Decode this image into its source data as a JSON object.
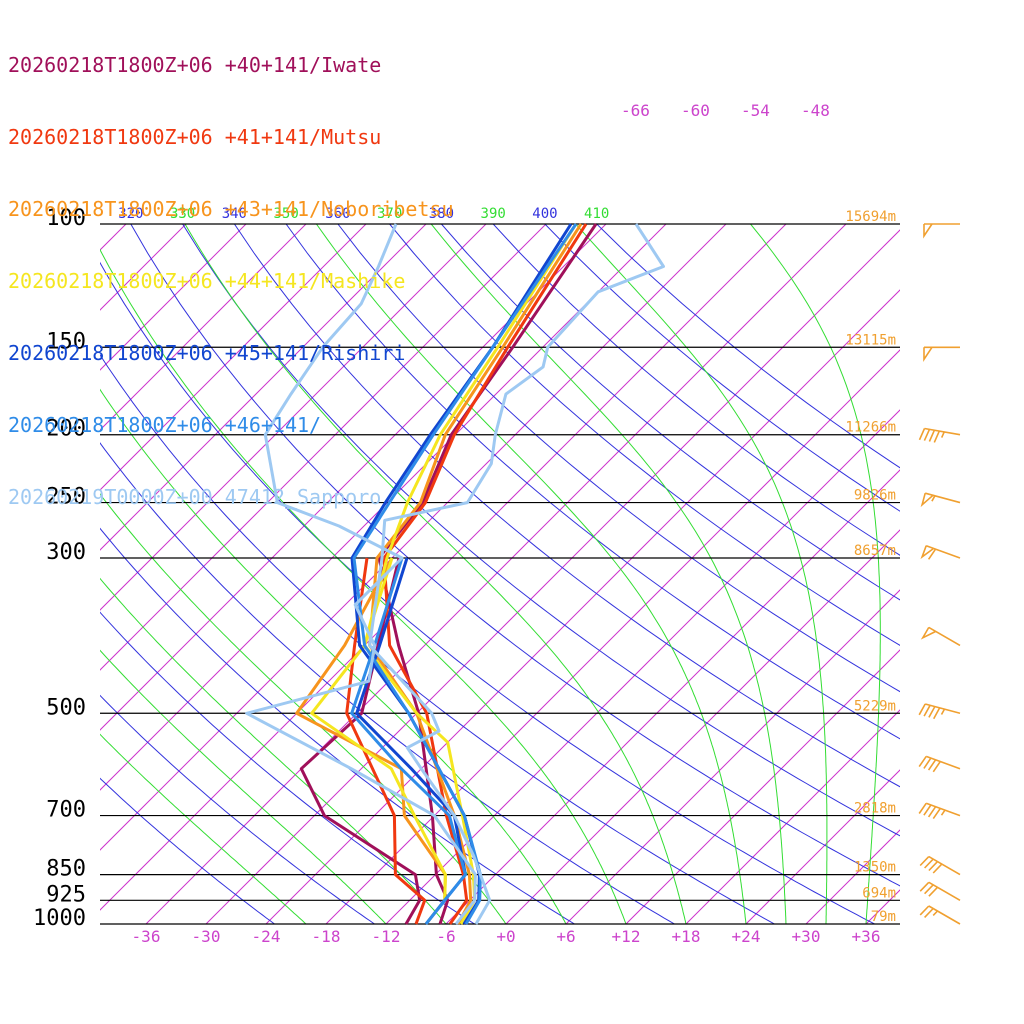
{
  "chart_data": {
    "type": "line",
    "title": "",
    "xlabel": "",
    "ylabel": "",
    "x_scale": "skew-T temperature (°C)",
    "y_scale": "log pressure (hPa)",
    "xlim": [
      -40,
      40
    ],
    "ylim": [
      1000,
      100
    ],
    "grid": true,
    "legend_position": "top-left",
    "x_ticks": [
      "-36",
      "-30",
      "-24",
      "-18",
      "-12",
      "-6",
      "+0",
      "+6",
      "+12",
      "+18",
      "+24",
      "+30",
      "+36"
    ],
    "pressure_levels": [
      {
        "p": 100,
        "label": "100",
        "height": "15694m"
      },
      {
        "p": 150,
        "label": "150",
        "height": "13115m"
      },
      {
        "p": 200,
        "label": "200",
        "height": "11266m"
      },
      {
        "p": 250,
        "label": "250",
        "height": "9826m"
      },
      {
        "p": 300,
        "label": "300",
        "height": "8657m"
      },
      {
        "p": 500,
        "label": "500",
        "height": "5229m"
      },
      {
        "p": 700,
        "label": "700",
        "height": "2818m"
      },
      {
        "p": 850,
        "label": "850",
        "height": "1350m"
      },
      {
        "p": 925,
        "label": "925",
        "height": "694m"
      },
      {
        "p": 1000,
        "label": "1000",
        "height": "79m"
      }
    ],
    "isotherm_labels": [
      "-66",
      "-60",
      "-54",
      "-48"
    ],
    "theta_labels": [
      "320",
      "330",
      "340",
      "350",
      "360",
      "370",
      "380",
      "390",
      "400",
      "410"
    ],
    "colors": {
      "isotherm": "#cc33cc",
      "dry_adiabat": "#3333dd",
      "moist_adiabat": "#33dd33",
      "height_label": "#f0a030",
      "wind_barb": "#f0a030",
      "axis_tick": "#cc44cc"
    },
    "series": [
      {
        "name": "20260218T1800Z+06 +40+141/Iwate",
        "color": "#a0105a",
        "temperature": [
          {
            "p": 1000,
            "t": -6.6
          },
          {
            "p": 925,
            "t": -8.2
          },
          {
            "p": 850,
            "t": -11.9
          },
          {
            "p": 700,
            "t": -18.2
          },
          {
            "p": 500,
            "t": -29.8
          },
          {
            "p": 400,
            "t": -38.6
          },
          {
            "p": 300,
            "t": -49.3
          },
          {
            "p": 250,
            "t": -50.5
          },
          {
            "p": 200,
            "t": -54.4
          },
          {
            "p": 150,
            "t": -57.0
          },
          {
            "p": 100,
            "t": -61.0
          }
        ],
        "dewpoint": [
          {
            "p": 1000,
            "t": -10.0
          },
          {
            "p": 925,
            "t": -11.0
          },
          {
            "p": 850,
            "t": -14.0
          },
          {
            "p": 700,
            "t": -29.0
          },
          {
            "p": 600,
            "t": -36.0
          },
          {
            "p": 500,
            "t": -35.5
          },
          {
            "p": 300,
            "t": -47.3
          }
        ]
      },
      {
        "name": "20260218T1800Z+06 +41+141/Mutsu",
        "color": "#f03810",
        "temperature": [
          {
            "p": 1000,
            "t": -5.6
          },
          {
            "p": 925,
            "t": -6.3
          },
          {
            "p": 850,
            "t": -9.2
          },
          {
            "p": 700,
            "t": -16.8
          },
          {
            "p": 500,
            "t": -29.0
          },
          {
            "p": 400,
            "t": -39.5
          },
          {
            "p": 300,
            "t": -48.8
          },
          {
            "p": 250,
            "t": -50.2
          },
          {
            "p": 200,
            "t": -54.1
          },
          {
            "p": 150,
            "t": -57.5
          },
          {
            "p": 100,
            "t": -62.0
          }
        ],
        "dewpoint": [
          {
            "p": 1000,
            "t": -9.0
          },
          {
            "p": 925,
            "t": -10.5
          },
          {
            "p": 850,
            "t": -16.0
          },
          {
            "p": 700,
            "t": -22.0
          },
          {
            "p": 500,
            "t": -37.0
          },
          {
            "p": 400,
            "t": -43.0
          },
          {
            "p": 300,
            "t": -50.5
          }
        ]
      },
      {
        "name": "20260218T1800Z+06 +43+141/Noboribetsu",
        "color": "#f7941d",
        "temperature": [
          {
            "p": 1000,
            "t": -4.8
          },
          {
            "p": 925,
            "t": -5.9
          },
          {
            "p": 850,
            "t": -8.6
          },
          {
            "p": 700,
            "t": -16.0
          },
          {
            "p": 500,
            "t": -30.0
          },
          {
            "p": 400,
            "t": -41.5
          },
          {
            "p": 300,
            "t": -49.5
          },
          {
            "p": 250,
            "t": -50.7
          },
          {
            "p": 200,
            "t": -55.0
          },
          {
            "p": 150,
            "t": -58.0
          },
          {
            "p": 100,
            "t": -62.5
          }
        ],
        "dewpoint": [
          {
            "p": 1000,
            "t": -8.0
          },
          {
            "p": 925,
            "t": -8.5
          },
          {
            "p": 850,
            "t": -11.0
          },
          {
            "p": 700,
            "t": -21.0
          },
          {
            "p": 600,
            "t": -26.0
          },
          {
            "p": 500,
            "t": -42.0
          },
          {
            "p": 400,
            "t": -44.0
          },
          {
            "p": 300,
            "t": -48.0
          }
        ]
      },
      {
        "name": "20260218T1800Z+06 +44+141/Mashike",
        "color": "#f5e620",
        "temperature": [
          {
            "p": 1000,
            "t": -4.5
          },
          {
            "p": 925,
            "t": -5.5
          },
          {
            "p": 850,
            "t": -8.2
          },
          {
            "p": 700,
            "t": -15.2
          },
          {
            "p": 550,
            "t": -24.0
          },
          {
            "p": 500,
            "t": -30.0
          },
          {
            "p": 400,
            "t": -42.0
          },
          {
            "p": 300,
            "t": -48.5
          },
          {
            "p": 250,
            "t": -52.0
          },
          {
            "p": 200,
            "t": -55.5
          },
          {
            "p": 150,
            "t": -58.5
          },
          {
            "p": 100,
            "t": -63.0
          }
        ],
        "dewpoint": [
          {
            "p": 1000,
            "t": -8.0
          },
          {
            "p": 925,
            "t": -8.5
          },
          {
            "p": 850,
            "t": -11.0
          },
          {
            "p": 700,
            "t": -20.0
          },
          {
            "p": 600,
            "t": -27.0
          },
          {
            "p": 500,
            "t": -40.5
          },
          {
            "p": 400,
            "t": -42.0
          },
          {
            "p": 300,
            "t": -48.0
          }
        ]
      },
      {
        "name": "20260218T1800Z+06 +45+141/Rishiri",
        "color": "#1146d0",
        "temperature": [
          {
            "p": 1000,
            "t": -4.2
          },
          {
            "p": 925,
            "t": -5.1
          },
          {
            "p": 850,
            "t": -7.6
          },
          {
            "p": 700,
            "t": -15.0
          },
          {
            "p": 500,
            "t": -30.8
          },
          {
            "p": 400,
            "t": -42.5
          },
          {
            "p": 300,
            "t": -52.0
          },
          {
            "p": 250,
            "t": -54.2
          },
          {
            "p": 200,
            "t": -56.5
          },
          {
            "p": 150,
            "t": -59.0
          },
          {
            "p": 100,
            "t": -63.5
          }
        ],
        "dewpoint": [
          {
            "p": 1000,
            "t": -8.0
          },
          {
            "p": 925,
            "t": -8.5
          },
          {
            "p": 850,
            "t": -9.0
          },
          {
            "p": 700,
            "t": -16.0
          },
          {
            "p": 600,
            "t": -25.0
          },
          {
            "p": 500,
            "t": -36.0
          },
          {
            "p": 400,
            "t": -40.5
          },
          {
            "p": 300,
            "t": -46.5
          }
        ]
      },
      {
        "name": "20260218T1800Z+06 +46+141/",
        "color": "#2f8ce8",
        "temperature": [
          {
            "p": 1000,
            "t": -4.0
          },
          {
            "p": 925,
            "t": -5.0
          },
          {
            "p": 850,
            "t": -7.5
          },
          {
            "p": 700,
            "t": -15.0
          },
          {
            "p": 500,
            "t": -30.8
          },
          {
            "p": 400,
            "t": -42.0
          },
          {
            "p": 300,
            "t": -51.8
          },
          {
            "p": 250,
            "t": -53.8
          },
          {
            "p": 200,
            "t": -56.2
          },
          {
            "p": 150,
            "t": -59.0
          },
          {
            "p": 100,
            "t": -63.0
          }
        ],
        "dewpoint": [
          {
            "p": 1000,
            "t": -8.0
          },
          {
            "p": 925,
            "t": -8.5
          },
          {
            "p": 850,
            "t": -9.0
          },
          {
            "p": 700,
            "t": -16.5
          },
          {
            "p": 600,
            "t": -26.0
          },
          {
            "p": 500,
            "t": -36.5
          },
          {
            "p": 400,
            "t": -41.0
          },
          {
            "p": 300,
            "t": -47.0
          }
        ]
      },
      {
        "name": "20260219T0000Z+00 47412_Sapporo",
        "color": "#9ec9f2",
        "temperature": [
          {
            "p": 1000,
            "t": -3.0
          },
          {
            "p": 925,
            "t": -4.0
          },
          {
            "p": 850,
            "t": -7.5
          },
          {
            "p": 800,
            "t": -10.0
          },
          {
            "p": 700,
            "t": -16.0
          },
          {
            "p": 600,
            "t": -24.0
          },
          {
            "p": 560,
            "t": -27.5
          },
          {
            "p": 530,
            "t": -26.0
          },
          {
            "p": 500,
            "t": -28.5
          },
          {
            "p": 400,
            "t": -41.5
          },
          {
            "p": 300,
            "t": -49.0
          },
          {
            "p": 265,
            "t": -52.5
          },
          {
            "p": 250,
            "t": -46.0
          },
          {
            "p": 220,
            "t": -47.5
          },
          {
            "p": 200,
            "t": -50.0
          },
          {
            "p": 175,
            "t": -53.0
          },
          {
            "p": 160,
            "t": -52.0
          },
          {
            "p": 150,
            "t": -53.5
          },
          {
            "p": 125,
            "t": -54.0
          },
          {
            "p": 115,
            "t": -50.0
          },
          {
            "p": 100,
            "t": -57.0
          }
        ],
        "dewpoint": [
          {
            "p": 1000,
            "t": -5.0
          },
          {
            "p": 925,
            "t": -5.5
          },
          {
            "p": 850,
            "t": -8.0
          },
          {
            "p": 700,
            "t": -18.0
          },
          {
            "p": 600,
            "t": -31.0
          },
          {
            "p": 500,
            "t": -47.0
          },
          {
            "p": 450,
            "t": -38.0
          },
          {
            "p": 400,
            "t": -41.0
          },
          {
            "p": 350,
            "t": -47.0
          },
          {
            "p": 300,
            "t": -47.0
          },
          {
            "p": 270,
            "t": -56.5
          },
          {
            "p": 250,
            "t": -65.0
          },
          {
            "p": 200,
            "t": -73.0
          },
          {
            "p": 175,
            "t": -74.5
          },
          {
            "p": 150,
            "t": -76.0
          },
          {
            "p": 130,
            "t": -76.5
          },
          {
            "p": 115,
            "t": -78.5
          },
          {
            "p": 100,
            "t": -81.0
          }
        ]
      }
    ],
    "wind_barbs": [
      {
        "p": 1000,
        "dir": 300,
        "speed_kt": 25
      },
      {
        "p": 925,
        "dir": 300,
        "speed_kt": 30
      },
      {
        "p": 850,
        "dir": 300,
        "speed_kt": 40
      },
      {
        "p": 700,
        "dir": 290,
        "speed_kt": 45
      },
      {
        "p": 600,
        "dir": 290,
        "speed_kt": 40
      },
      {
        "p": 500,
        "dir": 285,
        "speed_kt": 45
      },
      {
        "p": 400,
        "dir": 300,
        "speed_kt": 50
      },
      {
        "p": 300,
        "dir": 290,
        "speed_kt": 60
      },
      {
        "p": 250,
        "dir": 285,
        "speed_kt": 55
      },
      {
        "p": 200,
        "dir": 280,
        "speed_kt": 45
      },
      {
        "p": 150,
        "dir": 270,
        "speed_kt": 50
      },
      {
        "p": 100,
        "dir": 270,
        "speed_kt": 50
      }
    ]
  }
}
